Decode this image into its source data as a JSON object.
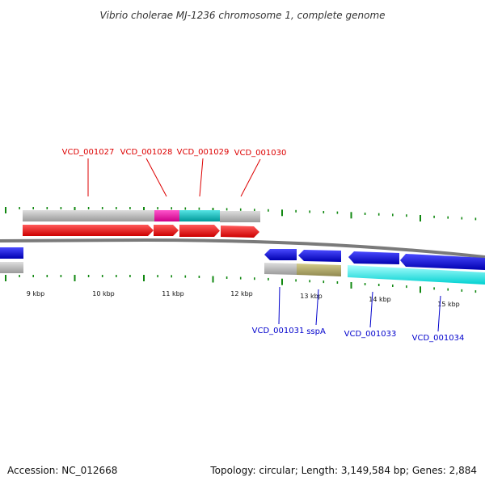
{
  "title": "Vibrio cholerae MJ-1236 chromosome 1, complete genome",
  "footer": {
    "accession": "Accession: NC_012668",
    "summary": "Topology: circular; Length: 3,149,584 bp; Genes: 2,884"
  },
  "colors": {
    "forward_cds": "#ff0000",
    "reverse_cds": "#0000ee",
    "backbone": "#808080",
    "gene_default": "#bbbbbb",
    "gene_magenta": "#ff11aa",
    "gene_cyan": "#11cccc",
    "gene_olive": "#b5ad6a",
    "gene_light_cyan": "#00ffff",
    "tick": "#118811",
    "forward_label": "#dd0000",
    "reverse_label": "#0000cc"
  },
  "kbp_labels": [
    "9 kbp",
    "10 kbp",
    "11 kbp",
    "12 kbp",
    "13 kbp",
    "14 kbp",
    "15 kbp"
  ],
  "forward_genes": [
    {
      "id": "VCD_001027",
      "color": "gene_default"
    },
    {
      "id": "VCD_001028",
      "color": "gene_magenta"
    },
    {
      "id": "VCD_001029",
      "color": "gene_cyan"
    },
    {
      "id": "VCD_001030",
      "color": "gene_default"
    }
  ],
  "reverse_genes": [
    {
      "id": "VCD_001031",
      "color": "gene_default"
    },
    {
      "id": "sspA",
      "color": "gene_olive"
    },
    {
      "id": "VCD_001033",
      "color": "gene_light_cyan"
    },
    {
      "id": "VCD_001034",
      "color": "gene_light_cyan"
    }
  ]
}
